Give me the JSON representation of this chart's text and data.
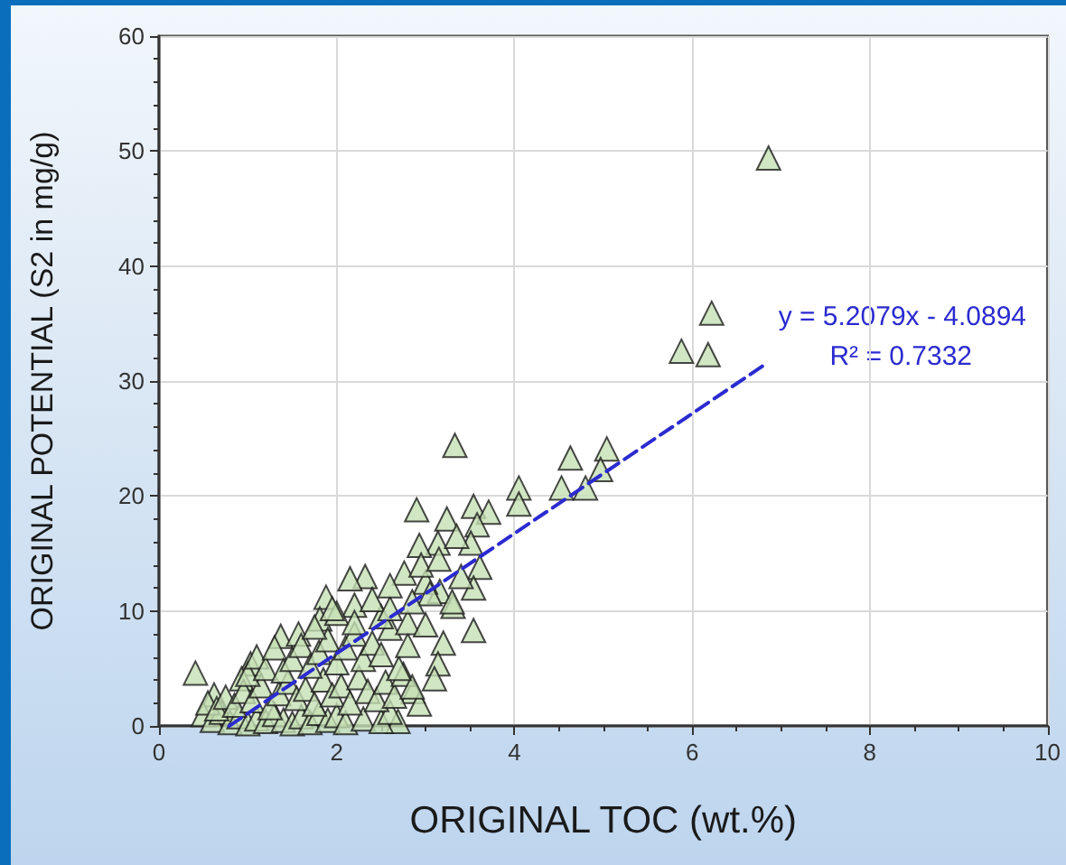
{
  "chart_data": {
    "type": "scatter",
    "xlabel": "ORIGINAL TOC (wt.%)",
    "ylabel": "ORIGINAL POTENTIAL (S2 in mg/g)",
    "xlim": [
      0,
      10
    ],
    "xticks": [
      0,
      2,
      4,
      6,
      8,
      10
    ],
    "ylim": [
      0,
      60
    ],
    "yticks": [
      0,
      10,
      20,
      30,
      40,
      50,
      60
    ],
    "grid": true,
    "annotations": [
      "y = 5.2079x - 4.0894",
      "R² = 0.7332"
    ],
    "series": [
      {
        "type": "scatter",
        "color": "#c5e0b4",
        "marker": "triangle",
        "x": [
          6.86,
          6.22,
          5.88,
          6.18,
          3.33,
          5.04,
          4.97,
          4.63,
          4.53,
          4.8,
          4.05,
          4.05,
          2.9,
          3.24,
          3.54,
          3.71,
          3.58,
          3.14,
          2.93,
          3.51,
          3.61,
          3.54,
          3.54,
          2.76,
          2.32,
          2.15,
          1.88,
          3.16,
          3.31,
          3.2,
          3.14,
          3.1,
          2.86,
          2.93,
          2.69,
          1.37,
          1.57,
          1.81,
          0.41,
          0.62,
          1.03,
          0.93,
          0.5,
          0.6,
          0.7,
          0.8,
          0.9,
          1.0,
          1.1,
          1.2,
          1.3,
          1.4,
          1.5,
          1.6,
          1.7,
          1.8,
          1.9,
          2.0,
          2.1,
          2.3,
          2.5,
          2.6,
          0.55,
          0.65,
          0.75,
          0.85,
          0.95,
          1.05,
          1.15,
          1.25,
          1.35,
          1.45,
          1.55,
          1.65,
          1.75,
          1.85,
          1.95,
          2.05,
          2.15,
          2.25,
          2.35,
          2.45,
          2.55,
          2.65,
          2.75,
          2.85,
          1.0,
          1.1,
          1.2,
          1.3,
          1.4,
          1.5,
          1.6,
          1.7,
          1.8,
          1.9,
          2.0,
          2.1,
          2.2,
          2.3,
          2.4,
          2.5,
          2.6,
          2.7,
          2.8,
          2.5,
          2.2,
          2.0,
          2.4,
          2.6,
          2.8,
          3.0,
          3.0,
          2.95,
          2.6,
          2.2,
          1.95,
          1.75,
          3.3,
          3.4,
          3.15,
          3.35,
          3.05,
          2.85
        ],
        "values": [
          49.4,
          35.9,
          32.6,
          32.3,
          24.4,
          24.1,
          22.3,
          23.3,
          20.7,
          20.7,
          20.7,
          19.3,
          18.8,
          18.0,
          19.1,
          18.6,
          17.5,
          15.9,
          15.7,
          15.9,
          13.8,
          12.0,
          8.3,
          13.3,
          13.0,
          12.8,
          11.2,
          11.7,
          10.4,
          7.2,
          5.4,
          4.1,
          3.0,
          1.9,
          0.4,
          7.8,
          8.0,
          9.3,
          4.6,
          2.7,
          5.4,
          4.1,
          1.0,
          0.5,
          1.2,
          0.3,
          0.8,
          0.2,
          0.6,
          0.4,
          1.0,
          0.5,
          0.2,
          0.8,
          0.3,
          1.1,
          0.5,
          0.9,
          0.3,
          0.6,
          0.4,
          1.2,
          2.0,
          1.5,
          2.5,
          1.8,
          3.0,
          2.2,
          3.5,
          1.6,
          2.8,
          3.8,
          2.4,
          3.2,
          1.9,
          4.0,
          2.7,
          3.5,
          2.0,
          4.2,
          3.0,
          2.3,
          3.8,
          2.6,
          4.5,
          3.4,
          4.5,
          6.0,
          5.0,
          6.8,
          4.8,
          5.8,
          7.0,
          5.2,
          6.4,
          7.5,
          5.5,
          6.8,
          8.0,
          5.8,
          7.2,
          6.2,
          8.5,
          5.0,
          7.0,
          9.5,
          10.5,
          9.8,
          11.0,
          10.2,
          9.0,
          8.8,
          12.5,
          14.0,
          12.2,
          9.0,
          10.2,
          8.6,
          10.8,
          13.0,
          14.5,
          16.5,
          11.5,
          10.8
        ]
      },
      {
        "type": "line",
        "color": "#2b2bd0",
        "marker": "none",
        "line_style": "dashed",
        "x": [
          0.79,
          6.85
        ],
        "values": [
          0,
          31.6
        ]
      }
    ]
  }
}
